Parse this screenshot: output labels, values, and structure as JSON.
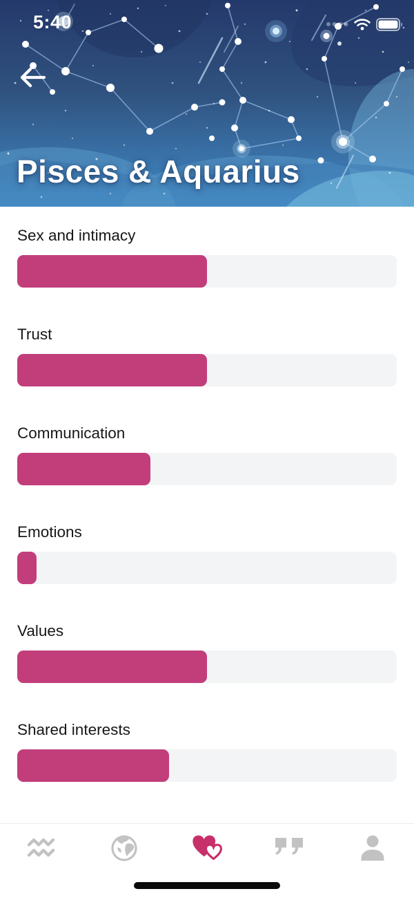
{
  "status_bar": {
    "time": "5:40",
    "icons": [
      "cellular-signal-icon",
      "wifi-icon",
      "battery-icon"
    ]
  },
  "header": {
    "title": "Pisces & Aquarius",
    "back_icon": "back-arrow-icon"
  },
  "metrics": [
    {
      "label": "Sex and intimacy",
      "percent": 50
    },
    {
      "label": "Trust",
      "percent": 50
    },
    {
      "label": "Communication",
      "percent": 35
    },
    {
      "label": "Emotions",
      "percent": 5
    },
    {
      "label": "Values",
      "percent": 50
    },
    {
      "label": "Shared interests",
      "percent": 40
    }
  ],
  "tab_bar": {
    "active_tab": "compatibility",
    "tabs": [
      {
        "id": "zodiac",
        "icon": "aquarius-icon"
      },
      {
        "id": "world",
        "icon": "globe-icon"
      },
      {
        "id": "compatibility",
        "icon": "hearts-icon"
      },
      {
        "id": "quotes",
        "icon": "quotes-icon"
      },
      {
        "id": "profile",
        "icon": "person-icon"
      }
    ]
  },
  "colors": {
    "accent": "#c23e7b",
    "tab_active": "#c7306a",
    "track": "#f3f4f6",
    "tab_inactive": "#c2c2c2",
    "home_indicator": "#0a0a0a",
    "sky_top": "#24396b",
    "sky_bottom": "#3f8cc9"
  }
}
